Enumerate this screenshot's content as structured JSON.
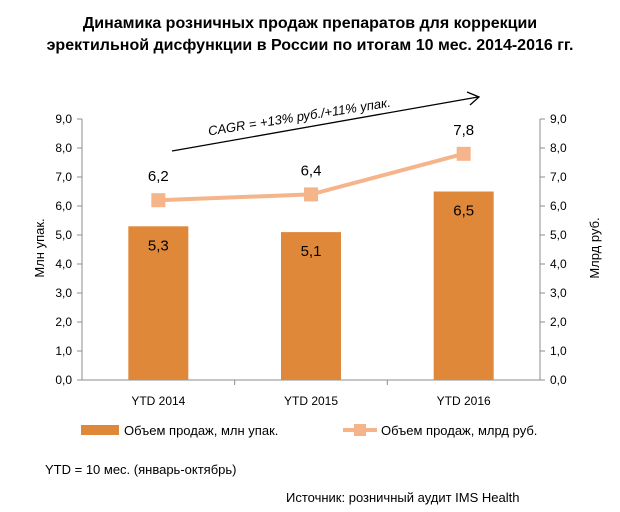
{
  "chart_data": {
    "type": "bar",
    "title_lines": [
      "Динамика розничных продаж препаратов для коррекции",
      "эректильной дисфункции в России по итогам 10 мес. 2014-2016 гг."
    ],
    "categories": [
      "YTD 2014",
      "YTD 2015",
      "YTD 2016"
    ],
    "series": [
      {
        "name": "Объем продаж, млн упак.",
        "kind": "bar",
        "axis": "left",
        "values": [
          5.3,
          5.1,
          6.5
        ],
        "labels": [
          "5,3",
          "5,1",
          "6,5"
        ],
        "color": "#E0883A"
      },
      {
        "name": "Объем продаж, млрд руб.",
        "kind": "line",
        "axis": "right",
        "values": [
          6.2,
          6.4,
          7.8
        ],
        "labels": [
          "6,2",
          "6,4",
          "7,8"
        ],
        "color": "#F5B48A"
      }
    ],
    "y_left": {
      "label": "Млн упак.",
      "min": 0,
      "max": 9,
      "step": 1,
      "ticks": [
        "0,0",
        "1,0",
        "2,0",
        "3,0",
        "4,0",
        "5,0",
        "6,0",
        "7,0",
        "8,0",
        "9,0"
      ]
    },
    "y_right": {
      "label": "Млрд руб.",
      "min": 0,
      "max": 9,
      "step": 1,
      "ticks": [
        "0,0",
        "1,0",
        "2,0",
        "3,0",
        "4,0",
        "5,0",
        "6,0",
        "7,0",
        "8,0",
        "9,0"
      ]
    },
    "annotation": "CAGR = +13% руб./+11% упак.",
    "legend_position": "bottom",
    "grid": false
  },
  "notes": {
    "ytd": "YTD = 10 мес. (январь-октябрь)",
    "source": "Источник: розничный аудит IMS Health"
  }
}
